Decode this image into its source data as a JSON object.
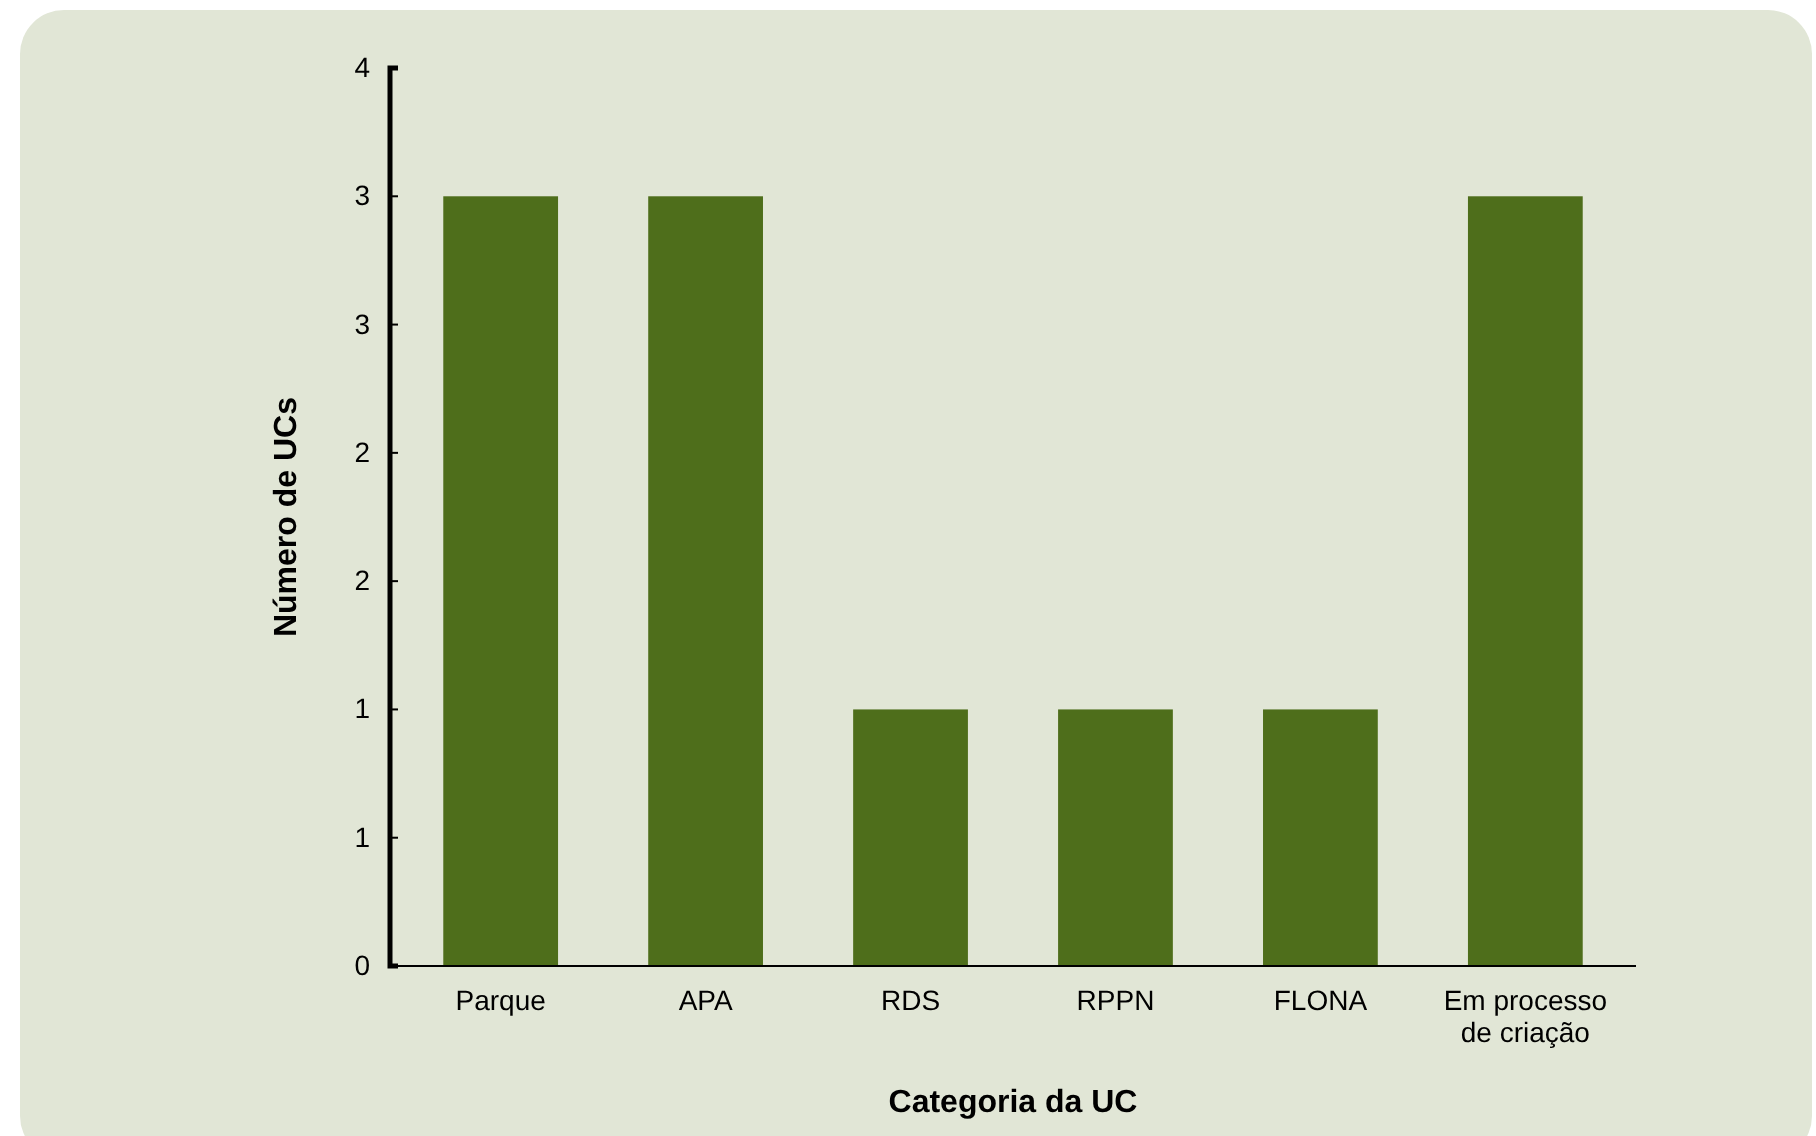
{
  "chart_data": {
    "type": "bar",
    "xlabel": "Categoria da UC",
    "ylabel": "Número de UCs",
    "categories": [
      "Parque",
      "APA",
      "RDS",
      "RPPN",
      "FLONA",
      "Em processo de criação"
    ],
    "values": [
      3,
      3,
      1,
      1,
      1,
      3
    ],
    "color": "#4e6e1b",
    "ylim": [
      0,
      3.5
    ],
    "yticks": [
      0,
      {
        "value": 0.5,
        "label": "1"
      },
      1,
      {
        "value": 1.5,
        "label": "2"
      },
      {
        "value": 2,
        "label": "2"
      },
      {
        "value": 2.5,
        "label": "3"
      },
      {
        "value": 3,
        "label": "3"
      },
      {
        "value": 3.5,
        "label": "4"
      }
    ],
    "grid": false
  }
}
